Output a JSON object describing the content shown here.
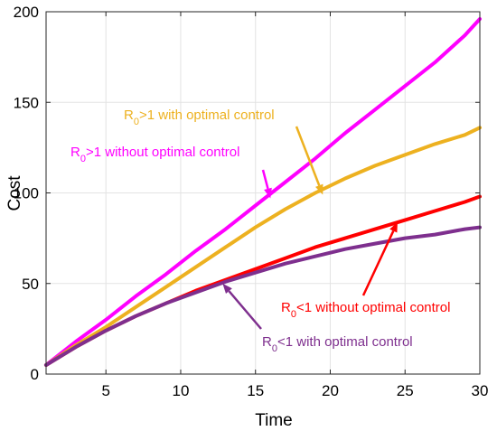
{
  "chart_data": {
    "type": "line",
    "title": "",
    "xlabel": "Time",
    "ylabel": "Cost",
    "xlim": [
      1,
      30
    ],
    "ylim": [
      0,
      200
    ],
    "grid": true,
    "x_ticks": [
      "5",
      "10",
      "15",
      "20",
      "25",
      "30"
    ],
    "y_ticks": [
      "0",
      "50",
      "100",
      "150",
      "200"
    ],
    "x": [
      1,
      3,
      5,
      7,
      9,
      11,
      13,
      15,
      17,
      19,
      21,
      23,
      25,
      27,
      29,
      30
    ],
    "series": [
      {
        "name": "R0>1 without optimal control",
        "color": "#ff00ff",
        "values": [
          5,
          18,
          30,
          43,
          55,
          68,
          80,
          93,
          106,
          119,
          133,
          146,
          159,
          172,
          187,
          196
        ]
      },
      {
        "name": "R0>1 with optimal control",
        "color": "#edb120",
        "values": [
          5,
          16,
          26,
          37,
          48,
          59,
          70,
          81,
          91,
          100,
          108,
          115,
          121,
          127,
          132,
          136
        ]
      },
      {
        "name": "R0<1 without optimal control",
        "color": "#ff0000",
        "values": [
          5,
          15,
          24,
          32,
          39,
          46,
          52,
          58,
          64,
          70,
          75,
          80,
          85,
          90,
          95,
          98
        ]
      },
      {
        "name": "R0<1 with optimal control",
        "color": "#7e2f8e",
        "values": [
          5,
          15,
          24,
          32,
          39,
          45,
          51,
          56,
          61,
          65,
          69,
          72,
          75,
          77,
          80,
          81
        ]
      }
    ],
    "annotations": [
      {
        "pre": "R",
        "sub": "0",
        "post": ">1 with optimal control",
        "color": "#edb120",
        "target": [
          19.5,
          99
        ]
      },
      {
        "pre": "R",
        "sub": "0",
        "post": ">1 without optimal control",
        "color": "#ff00ff",
        "target": [
          16,
          97
        ]
      },
      {
        "pre": "R",
        "sub": "0",
        "post": "<1 without optimal control",
        "color": "#ff0000",
        "target": [
          24.5,
          84
        ]
      },
      {
        "pre": "R",
        "sub": "0",
        "post": "<1 with optimal control",
        "color": "#7e2f8e",
        "target": [
          12.8,
          50
        ]
      }
    ]
  }
}
